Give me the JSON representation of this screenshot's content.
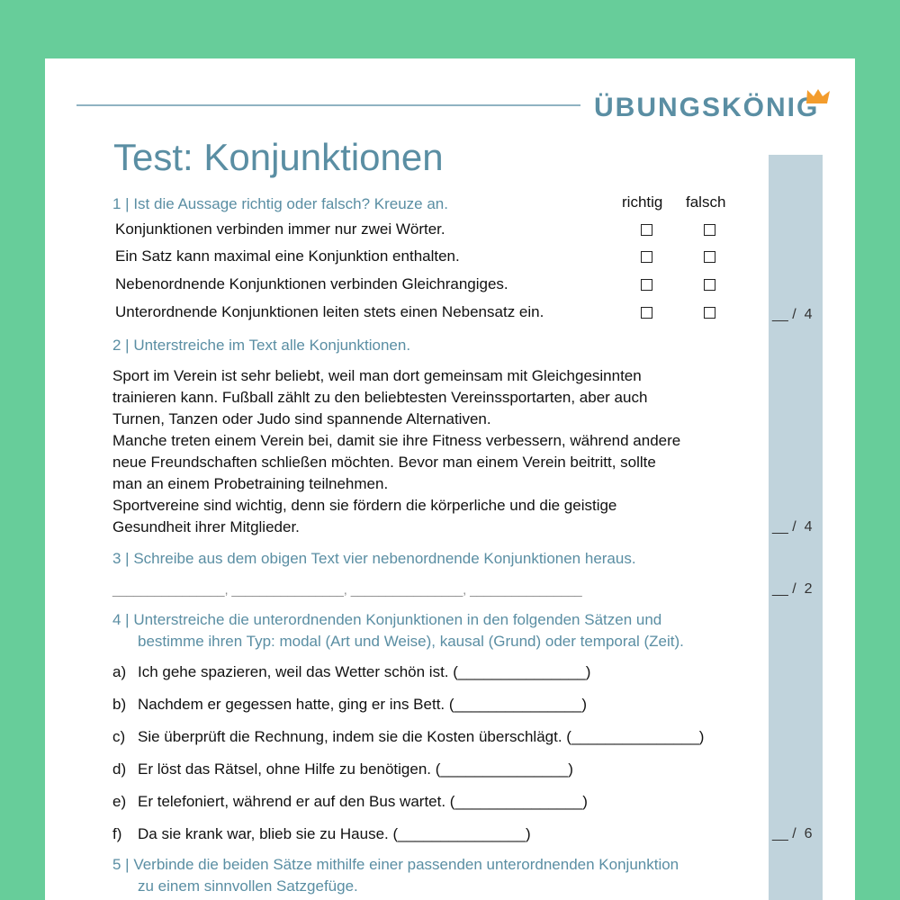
{
  "brand": {
    "logo_text": "ÜBUNGSKÖNIG",
    "accent": "#5a8ea3",
    "crown_color": "#f39c2c",
    "background": "#67cd9a"
  },
  "title": "Test: Konjunktionen",
  "q1": {
    "prompt": "1 |  Ist die Aussage richtig oder falsch? Kreuze an.",
    "col_true": "richtig",
    "col_false": "falsch",
    "statements": [
      "Konjunktionen verbinden immer nur zwei Wörter.",
      "Ein Satz kann maximal eine Konjunktion enthalten.",
      "Nebenordnende Konjunktionen verbinden Gleichrangiges.",
      "Unterordnende Konjunktionen leiten stets einen Nebensatz ein."
    ],
    "score": "__ /  4"
  },
  "q2": {
    "prompt": "2 | Unterstreiche im Text alle Konjunktionen.",
    "lines": [
      "Sport im Verein ist sehr beliebt, weil man dort gemeinsam mit Gleichgesinnten",
      "trainieren kann. Fußball zählt zu den beliebtesten Vereinssportarten, aber auch",
      "Turnen, Tanzen oder Judo sind spannende Alternativen.",
      "Manche treten einem Verein bei, damit sie ihre Fitness verbessern, während andere",
      "neue Freundschaften schließen möchten. Bevor man einem Verein beitritt, sollte",
      "man an einem Probetraining teilnehmen.",
      "Sportvereine sind wichtig, denn sie fördern die körperliche und die geistige",
      "Gesundheit ihrer Mitglieder."
    ],
    "score": "__ /  4"
  },
  "q3": {
    "prompt": "3 | Schreibe aus dem obigen Text vier nebenordnende Konjunktionen heraus.",
    "blanks": "________________, ________________, ________________, ________________",
    "score": "__ /  2"
  },
  "q4": {
    "prompt_lines": [
      "4 | Unterstreiche die unterordnenden Konjunktionen in den folgenden Sätzen und",
      "bestimme ihren Typ: modal (Art und Weise), kausal (Grund) oder temporal (Zeit)."
    ],
    "items": [
      {
        "label": "a)",
        "text": "Ich gehe spazieren, weil das Wetter schön ist. (_______________)"
      },
      {
        "label": "b)",
        "text": "Nachdem er gegessen hatte, ging er ins Bett. (_______________)"
      },
      {
        "label": "c)",
        "text": "Sie überprüft die Rechnung, indem sie die Kosten überschlägt. (_______________)"
      },
      {
        "label": "d)",
        "text": "Er löst das Rätsel, ohne Hilfe zu benötigen. (_______________)"
      },
      {
        "label": "e)",
        "text": "Er telefoniert, während er auf den Bus wartet. (_______________)"
      },
      {
        "label": "f)",
        "text": "Da sie krank war, blieb sie zu Hause. (_______________)"
      }
    ],
    "score": "__ /  6"
  },
  "q5": {
    "prompt_lines": [
      "5 | Verbinde die beiden Sätze mithilfe einer passenden unterordnenden Konjunktion",
      "zu einem sinnvollen Satzgefüge."
    ]
  }
}
